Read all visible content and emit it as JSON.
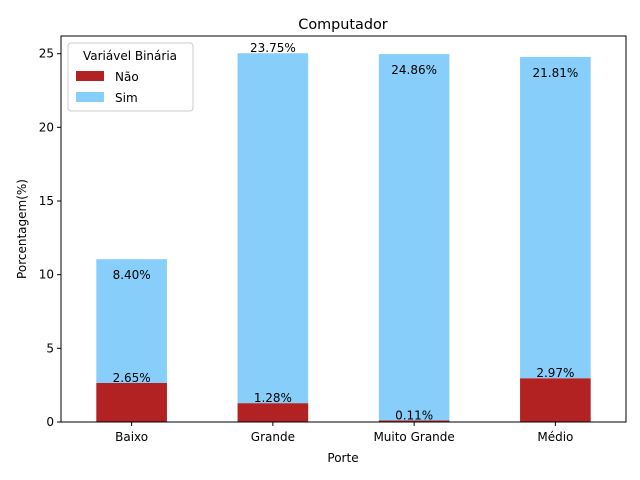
{
  "chart_data": {
    "type": "bar",
    "stacked": true,
    "title": "Computador",
    "xlabel": "Porte",
    "ylabel": "Porcentagem(%)",
    "ylim": [
      0,
      26.2
    ],
    "yticks": [
      "0",
      "5",
      "10",
      "15",
      "20",
      "25"
    ],
    "ytick_values": [
      0,
      5,
      10,
      15,
      20,
      25
    ],
    "grid": false,
    "legend_title": "Variável Binária",
    "legend_position": "top-left",
    "categories": [
      "Baixo",
      "Grande",
      "Muito Grande",
      "Médio"
    ],
    "series": [
      {
        "name": "Não",
        "color": "#b22222",
        "values": [
          2.65,
          1.28,
          0.11,
          2.97
        ],
        "labels": [
          "2.65%",
          "1.28%",
          "0.11%",
          "2.97%"
        ]
      },
      {
        "name": "Sim",
        "color": "#87cefa",
        "values": [
          8.4,
          23.75,
          24.86,
          21.81
        ],
        "labels": [
          "8.40%",
          "23.75%",
          "24.86%",
          "21.81%"
        ]
      }
    ]
  }
}
